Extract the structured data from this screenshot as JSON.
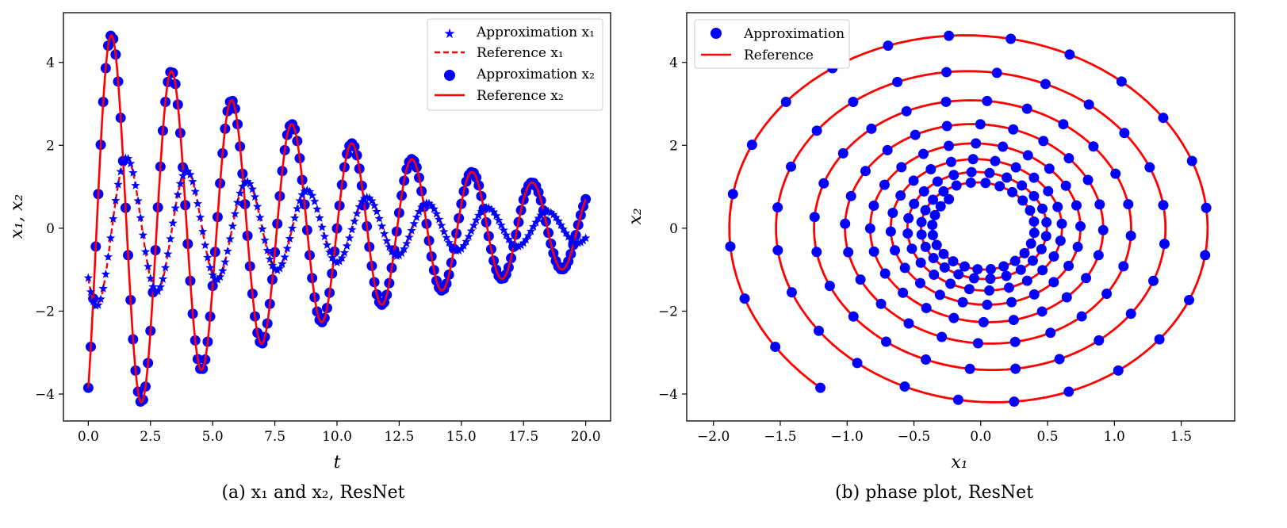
{
  "colors": {
    "approx": "#0000ff",
    "reference": "#ff0000",
    "axis": "#000000",
    "background": "#ffffff"
  },
  "captions": {
    "left": "(a) x₁ and x₂, ResNet",
    "right": "(b) phase plot, ResNet"
  },
  "chart_data": [
    {
      "type": "line",
      "xlabel": "t",
      "ylabel": "x₁, x₂",
      "xlim": [
        -1.0,
        21.0
      ],
      "ylim": [
        -4.65,
        5.2
      ],
      "xticks": [
        0.0,
        2.5,
        5.0,
        7.5,
        10.0,
        12.5,
        15.0,
        17.5,
        20.0
      ],
      "xtick_labels": [
        "0.0",
        "2.5",
        "5.0",
        "7.5",
        "10.0",
        "12.5",
        "15.0",
        "17.5",
        "20.0"
      ],
      "yticks": [
        -4,
        -2,
        0,
        2,
        4
      ],
      "ytick_labels": [
        "−4",
        "−2",
        "0",
        "2",
        "4"
      ],
      "grid": false,
      "legend_position": "top-right",
      "t_range": [
        0,
        20
      ],
      "t_step_reference": 0.02,
      "t_step_approximation": 0.1,
      "series": [
        {
          "name": "Approximation x₁",
          "variable": "x1",
          "style": "stars",
          "color": "#0000ff"
        },
        {
          "name": "Reference x₁",
          "variable": "x1",
          "style": "dashed",
          "color": "#ff0000"
        },
        {
          "name": "Approximation x₂",
          "variable": "x2",
          "style": "dots",
          "color": "#0000ff"
        },
        {
          "name": "Reference x₂",
          "variable": "x2",
          "style": "solid",
          "color": "#ff0000"
        }
      ],
      "model": {
        "x1_0": -1.2,
        "x2_0": -3.85,
        "omega": 2.6,
        "damping": 0.085
      }
    },
    {
      "type": "scatter",
      "xlabel": "x₁",
      "ylabel": "x₂",
      "xlim": [
        -2.2,
        1.9
      ],
      "ylim": [
        -4.65,
        5.2
      ],
      "xticks": [
        -2.0,
        -1.5,
        -1.0,
        -0.5,
        0.0,
        0.5,
        1.0,
        1.5
      ],
      "xtick_labels": [
        "−2.0",
        "−1.5",
        "−1.0",
        "−0.5",
        "0.0",
        "0.5",
        "1.0",
        "1.5"
      ],
      "yticks": [
        -4,
        -2,
        0,
        2,
        4
      ],
      "ytick_labels": [
        "−4",
        "−2",
        "0",
        "2",
        "4"
      ],
      "grid": false,
      "legend_position": "top-left",
      "series": [
        {
          "name": "Approximation",
          "style": "dots",
          "color": "#0000ff"
        },
        {
          "name": "Reference",
          "style": "solid",
          "color": "#ff0000"
        }
      ]
    }
  ]
}
